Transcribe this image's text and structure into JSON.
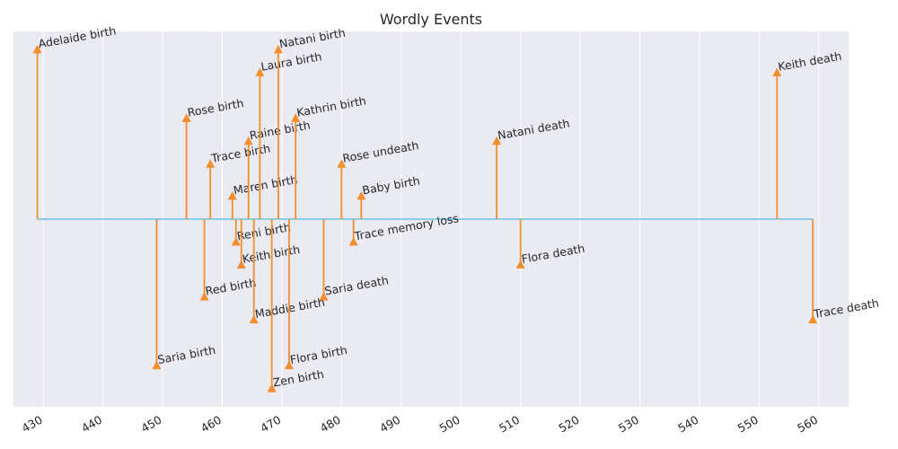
{
  "chart_data": {
    "type": "timeline-stem",
    "title": "Wordly Events",
    "xlabel": "",
    "ylabel": "",
    "xlim": [
      425,
      565
    ],
    "ylim": [
      -4.1,
      4.1
    ],
    "grid": true,
    "xticks": [
      430,
      440,
      450,
      460,
      470,
      480,
      490,
      500,
      510,
      520,
      530,
      540,
      550,
      560
    ],
    "baseline": {
      "start": 429,
      "end": 559
    },
    "colors": {
      "background": "#eaeaf2",
      "grid": "#ffffff",
      "baseline": "#87ceeb",
      "stem": "#f28e2b",
      "text": "#262626"
    },
    "events": [
      {
        "label": "Adelaide birth",
        "x": 429,
        "level": 3.7
      },
      {
        "label": "Saria birth",
        "x": 449,
        "level": -3.2
      },
      {
        "label": "Rose birth",
        "x": 454,
        "level": 2.2
      },
      {
        "label": "Red birth",
        "x": 457,
        "level": -1.7
      },
      {
        "label": "Trace birth",
        "x": 458,
        "level": 1.2
      },
      {
        "label": "Maren birth",
        "x": 461.7,
        "level": 0.5
      },
      {
        "label": "Reni birth",
        "x": 462.3,
        "level": -0.5
      },
      {
        "label": "Keith birth",
        "x": 463.2,
        "level": -1.0
      },
      {
        "label": "Raine birth",
        "x": 464.4,
        "level": 1.7
      },
      {
        "label": "Maddie birth",
        "x": 465.3,
        "level": -2.2
      },
      {
        "label": "Laura birth",
        "x": 466.3,
        "level": 3.2
      },
      {
        "label": "Zen birth",
        "x": 468.3,
        "level": -3.7
      },
      {
        "label": "Natani birth",
        "x": 469.4,
        "level": 3.7
      },
      {
        "label": "Flora birth",
        "x": 471.2,
        "level": -3.2
      },
      {
        "label": "Kathrin birth",
        "x": 472.3,
        "level": 2.2
      },
      {
        "label": "Saria death",
        "x": 477,
        "level": -1.7
      },
      {
        "label": "Rose undeath",
        "x": 480,
        "level": 1.2
      },
      {
        "label": "Trace memory loss",
        "x": 482,
        "level": -0.5
      },
      {
        "label": "Baby birth",
        "x": 483.3,
        "level": 0.5
      },
      {
        "label": "Natani death",
        "x": 506,
        "level": 1.7
      },
      {
        "label": "Flora death",
        "x": 510,
        "level": -1.0
      },
      {
        "label": "Keith death",
        "x": 553,
        "level": 3.2
      },
      {
        "label": "Trace death",
        "x": 559,
        "level": -2.2
      }
    ]
  }
}
